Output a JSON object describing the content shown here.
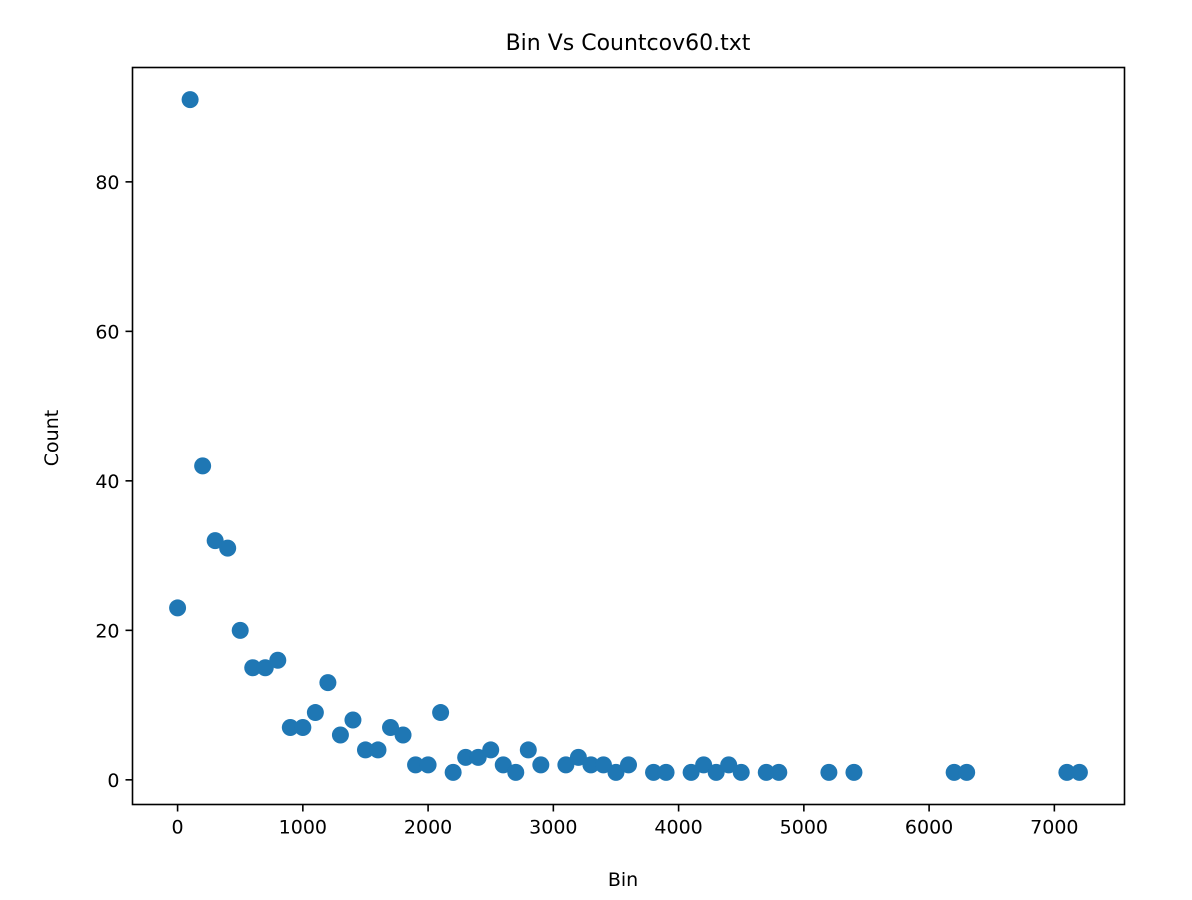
{
  "chart_data": {
    "type": "scatter",
    "title": "Bin Vs Countcov60.txt",
    "xlabel": "Bin",
    "ylabel": "Count",
    "xlim": [
      -360,
      7560
    ],
    "ylim": [
      -3.3,
      95.3
    ],
    "xticks": [
      0,
      1000,
      2000,
      3000,
      4000,
      5000,
      6000,
      7000
    ],
    "yticks": [
      0,
      20,
      40,
      60,
      80
    ],
    "grid": false,
    "color": "#1f77b4",
    "points": [
      {
        "x": 0,
        "y": 23
      },
      {
        "x": 100,
        "y": 91
      },
      {
        "x": 200,
        "y": 42
      },
      {
        "x": 300,
        "y": 32
      },
      {
        "x": 400,
        "y": 31
      },
      {
        "x": 500,
        "y": 20
      },
      {
        "x": 600,
        "y": 15
      },
      {
        "x": 700,
        "y": 15
      },
      {
        "x": 800,
        "y": 16
      },
      {
        "x": 900,
        "y": 7
      },
      {
        "x": 1000,
        "y": 7
      },
      {
        "x": 1100,
        "y": 9
      },
      {
        "x": 1200,
        "y": 13
      },
      {
        "x": 1300,
        "y": 6
      },
      {
        "x": 1400,
        "y": 8
      },
      {
        "x": 1500,
        "y": 4
      },
      {
        "x": 1600,
        "y": 4
      },
      {
        "x": 1700,
        "y": 7
      },
      {
        "x": 1800,
        "y": 6
      },
      {
        "x": 1900,
        "y": 2
      },
      {
        "x": 2000,
        "y": 2
      },
      {
        "x": 2100,
        "y": 9
      },
      {
        "x": 2200,
        "y": 1
      },
      {
        "x": 2300,
        "y": 3
      },
      {
        "x": 2400,
        "y": 3
      },
      {
        "x": 2500,
        "y": 4
      },
      {
        "x": 2600,
        "y": 2
      },
      {
        "x": 2700,
        "y": 1
      },
      {
        "x": 2800,
        "y": 4
      },
      {
        "x": 2900,
        "y": 2
      },
      {
        "x": 3100,
        "y": 2
      },
      {
        "x": 3200,
        "y": 3
      },
      {
        "x": 3300,
        "y": 2
      },
      {
        "x": 3400,
        "y": 2
      },
      {
        "x": 3500,
        "y": 1
      },
      {
        "x": 3600,
        "y": 2
      },
      {
        "x": 3800,
        "y": 1
      },
      {
        "x": 3900,
        "y": 1
      },
      {
        "x": 4100,
        "y": 1
      },
      {
        "x": 4200,
        "y": 2
      },
      {
        "x": 4300,
        "y": 1
      },
      {
        "x": 4400,
        "y": 2
      },
      {
        "x": 4500,
        "y": 1
      },
      {
        "x": 4700,
        "y": 1
      },
      {
        "x": 4800,
        "y": 1
      },
      {
        "x": 5200,
        "y": 1
      },
      {
        "x": 5400,
        "y": 1
      },
      {
        "x": 6200,
        "y": 1
      },
      {
        "x": 6300,
        "y": 1
      },
      {
        "x": 7100,
        "y": 1
      },
      {
        "x": 7200,
        "y": 1
      }
    ]
  }
}
